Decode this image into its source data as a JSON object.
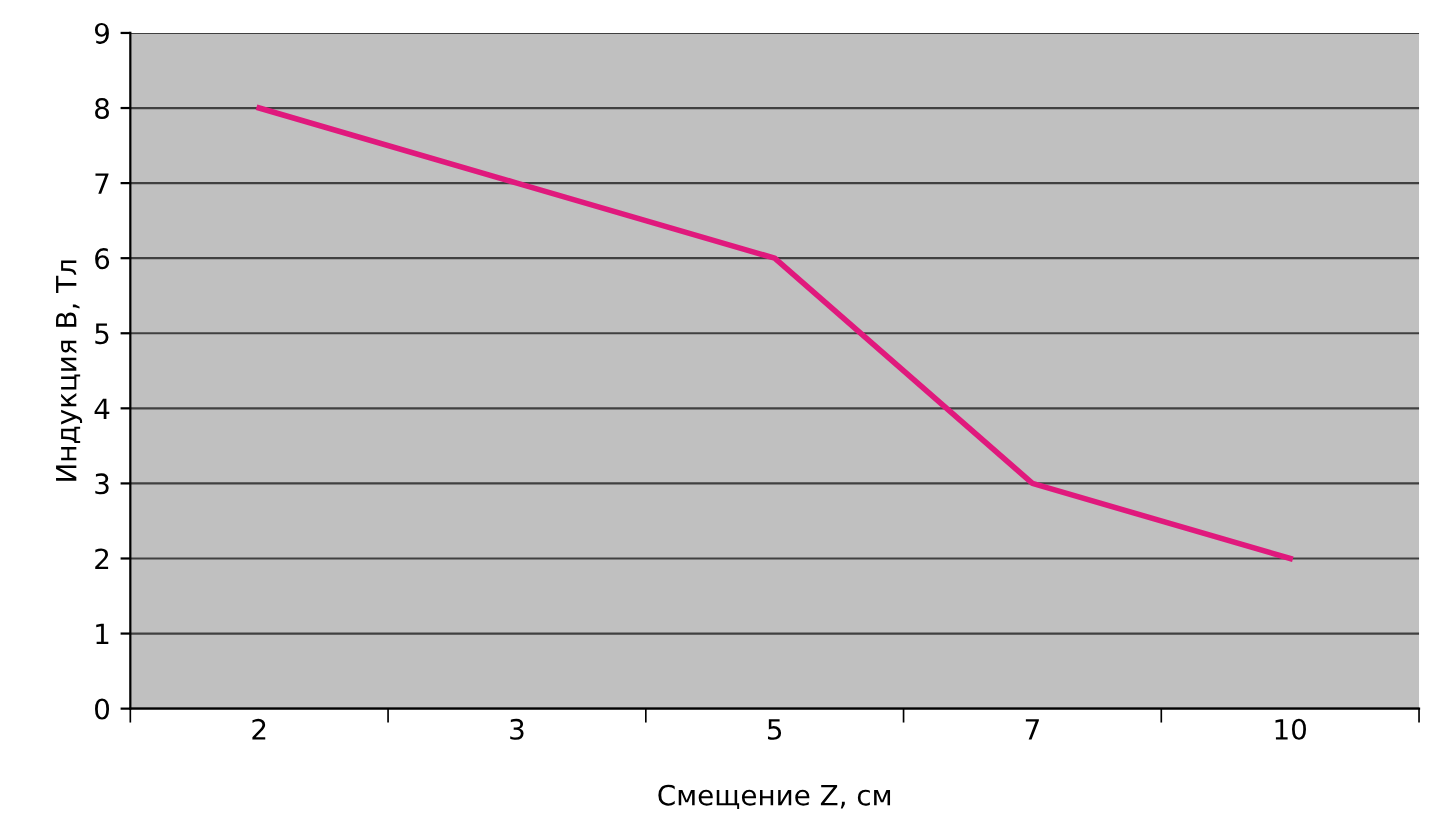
{
  "chart_data": {
    "type": "line",
    "xlabel": "Смещение Z, см",
    "ylabel": "Индукция B, Тл",
    "categories": [
      "2",
      "3",
      "5",
      "7",
      "10"
    ],
    "series": [
      {
        "color": "#e0197d",
        "values": [
          8,
          7,
          6,
          3,
          2
        ]
      }
    ],
    "ylim": [
      0,
      9
    ],
    "yticks": [
      0,
      1,
      2,
      3,
      4,
      5,
      6,
      7,
      8,
      9
    ],
    "grid": "y",
    "legend": false,
    "line_style": "solid"
  }
}
